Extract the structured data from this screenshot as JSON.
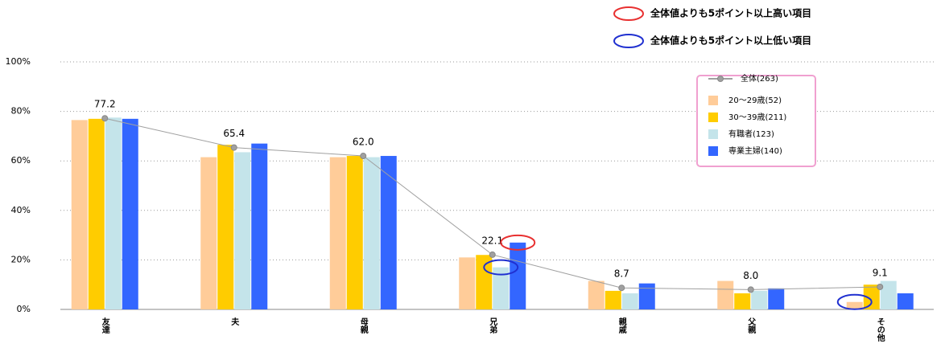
{
  "chart_data": {
    "type": "bar",
    "categories": [
      "友達",
      "夫",
      "母親",
      "兄弟",
      "親戚",
      "父親",
      "その他"
    ],
    "series": [
      {
        "name": "全体(263)",
        "type": "line",
        "color": "#a0a0a0",
        "values": [
          77.2,
          65.4,
          62.0,
          22.1,
          8.7,
          8.0,
          9.1
        ],
        "value_labels": [
          "77.2",
          "65.4",
          "62.0",
          "22.1",
          "8.7",
          "8.0",
          "9.1"
        ]
      },
      {
        "name": "20〜29歳(52)",
        "color": "#ffcc99",
        "values": [
          76.5,
          61.5,
          61.5,
          21,
          11.5,
          11.5,
          3
        ]
      },
      {
        "name": "30〜39歳(211)",
        "color": "#ffcc00",
        "values": [
          77,
          66.5,
          62,
          22,
          7.5,
          6.5,
          10
        ]
      },
      {
        "name": "有職者(123)",
        "color": "#c4e4ea",
        "values": [
          77.5,
          63.5,
          61.5,
          17,
          6.5,
          7.5,
          11.5
        ]
      },
      {
        "name": "専業主婦(140)",
        "color": "#3366ff",
        "values": [
          77,
          67,
          62,
          27,
          10.5,
          8.5,
          6.5
        ]
      }
    ],
    "ylim": [
      0,
      100
    ],
    "yticks": [
      {
        "value": 0,
        "label": "0%"
      },
      {
        "value": 20,
        "label": "20%"
      },
      {
        "value": 40,
        "label": "40%"
      },
      {
        "value": 60,
        "label": "60%"
      },
      {
        "value": 80,
        "label": "80%"
      },
      {
        "value": 100,
        "label": "100%"
      }
    ],
    "grid": true,
    "legend": "upper right",
    "annotations": {
      "high": "全体値よりも5ポイント以上高い項目",
      "low": "全体値よりも5ポイント以上低い項目"
    },
    "high_marks": [
      {
        "series": "専業主婦(140)",
        "category": "兄弟"
      }
    ],
    "low_marks": [
      {
        "series": "有職者(123)",
        "category": "兄弟"
      },
      {
        "series": "20〜29歳(52)",
        "category": "その他"
      }
    ]
  }
}
